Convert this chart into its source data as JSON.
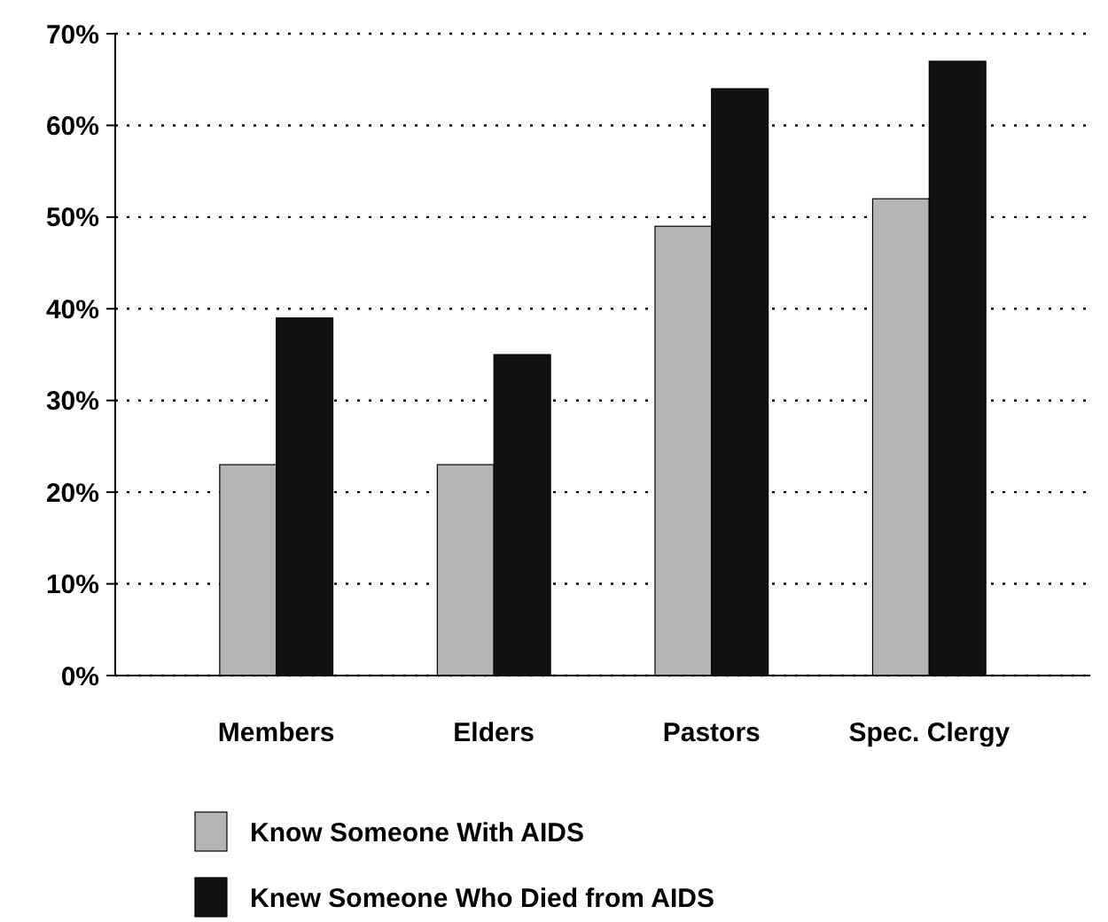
{
  "chart_data": {
    "type": "bar",
    "categories": [
      "Members",
      "Elders",
      "Pastors",
      "Spec. Clergy"
    ],
    "series": [
      {
        "name": "Know Someone With AIDS",
        "color": "#b4b4b4",
        "values": [
          23,
          23,
          49,
          52
        ]
      },
      {
        "name": "Knew Someone Who Died from AIDS",
        "color": "#111111",
        "values": [
          39,
          35,
          64,
          67
        ]
      }
    ],
    "ylim": [
      0,
      70
    ],
    "yticks": [
      {
        "value": 0,
        "label": "0%"
      },
      {
        "value": 10,
        "label": "10%"
      },
      {
        "value": 20,
        "label": "20%"
      },
      {
        "value": 30,
        "label": "30%"
      },
      {
        "value": 40,
        "label": "40%"
      },
      {
        "value": 50,
        "label": "50%"
      },
      {
        "value": 60,
        "label": "60%"
      },
      {
        "value": 70,
        "label": "70%"
      }
    ],
    "grid": "y",
    "legend": "bottom"
  }
}
